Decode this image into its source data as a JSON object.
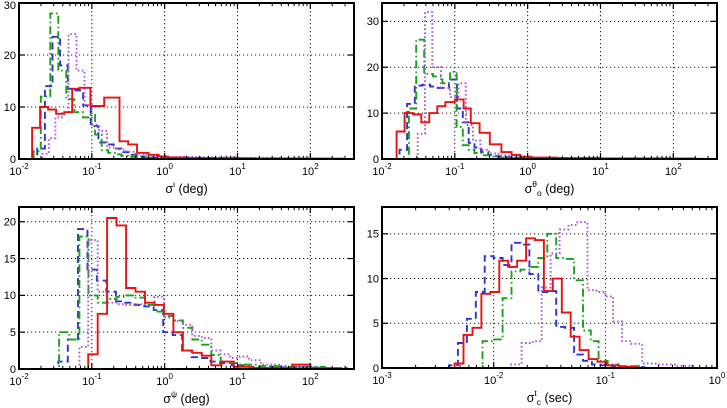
{
  "page": {
    "background": "#ffffff"
  },
  "colors": {
    "red": "#e81212",
    "blue": "#2c35cc",
    "green": "#1aa11a",
    "magenta": "#b050e0",
    "axis": "#000000",
    "grid": "#1a1a1a"
  },
  "chart_data": [
    {
      "type": "bar",
      "subtype": "step-histogram",
      "id": "sigma-iota-deg",
      "title": "",
      "xlabel_text": "σ^ι (deg)",
      "xlabel_parts": [
        {
          "t": "σ",
          "s": "base"
        },
        {
          "t": "ι",
          "s": "sup"
        },
        {
          "t": " (deg)",
          "s": "base"
        }
      ],
      "ylabel": "",
      "xscale": "log",
      "xlim_log10": [
        -2,
        2.6
      ],
      "xticks_log10": [
        -2,
        -1,
        0,
        1,
        2
      ],
      "ylim": [
        0,
        30
      ],
      "yticks": [
        0,
        10,
        20,
        30
      ],
      "grid": true,
      "legend": "none",
      "series": [
        {
          "name": "series-blue-dashed",
          "color": "#2c35cc",
          "style": "dashed",
          "edges_log10": [
            -1.75,
            -1.645,
            -1.54,
            -1.435,
            -1.33,
            -1.225,
            -1.12,
            -1.015,
            -0.91,
            -0.805,
            -0.7,
            -0.595,
            -0.49,
            -0.385,
            -0.28,
            -0.12,
            0.2,
            0.7,
            1.4,
            2.2
          ],
          "counts": [
            2,
            14,
            23.5,
            18,
            13.5,
            13.2,
            10.3,
            6.3,
            3.2,
            2.8,
            2.0,
            1.3,
            0.8,
            0.5,
            0.3,
            0.2,
            0.12,
            0.08,
            0.05
          ]
        },
        {
          "name": "series-green-dashdot",
          "color": "#1aa11a",
          "style": "dashdot",
          "edges_log10": [
            -1.8,
            -1.7,
            -1.57,
            -1.46,
            -1.35,
            -1.24,
            -1.12,
            -1.045,
            -0.955,
            -0.865,
            -0.775,
            -0.685,
            -0.595,
            -0.5,
            -0.38,
            -0.2,
            0.1,
            0.6,
            1.4,
            2.3
          ],
          "counts": [
            1.5,
            12,
            28,
            17,
            11.5,
            9,
            8,
            8.5,
            4.7,
            1.7,
            1.2,
            0.9,
            0.6,
            0.4,
            0.3,
            0.2,
            0.12,
            0.08,
            0.05
          ]
        },
        {
          "name": "series-magenta-dotted",
          "color": "#b050e0",
          "style": "dotted",
          "edges_log10": [
            -1.68,
            -1.59,
            -1.5,
            -1.41,
            -1.32,
            -1.21,
            -1.1,
            -1.0,
            -0.9,
            -0.79,
            -0.66,
            -0.53,
            -0.4,
            -0.27,
            -0.12,
            0.1,
            0.5,
            1.0,
            1.6,
            2.3
          ],
          "counts": [
            1,
            4,
            8,
            9,
            24,
            17,
            10.4,
            6.6,
            5.4,
            2.2,
            1.8,
            1.4,
            1.0,
            0.8,
            0.5,
            0.4,
            0.3,
            0.2,
            0.1
          ]
        },
        {
          "name": "series-red-solid",
          "color": "#e81212",
          "style": "solid",
          "edges_log10": [
            -1.82,
            -1.71,
            -1.6,
            -1.49,
            -1.38,
            -1.27,
            -1.17,
            -1.02,
            -0.83,
            -0.62,
            -0.5,
            -0.38,
            -0.22,
            -0.08,
            0.04,
            0.3,
            0.7,
            1.2,
            2.0,
            2.45
          ],
          "counts": [
            6,
            10,
            9.5,
            8.7,
            9,
            13.5,
            13.7,
            10.2,
            11.8,
            3.4,
            2.8,
            1.2,
            0.8,
            0.5,
            0.3,
            0.2,
            0.15,
            0.1,
            0.08
          ]
        }
      ]
    },
    {
      "type": "bar",
      "subtype": "step-histogram",
      "id": "sigma-theta-o-deg",
      "title": "",
      "xlabel_text": "σ^θ_o (deg)",
      "xlabel_parts": [
        {
          "t": "σ",
          "s": "base"
        },
        {
          "t": "θ",
          "s": "sup"
        },
        {
          "t": "o",
          "s": "sub"
        },
        {
          "t": " (deg)",
          "s": "base"
        }
      ],
      "ylabel": "",
      "xscale": "log",
      "xlim_log10": [
        -2,
        2.6
      ],
      "xticks_log10": [
        -2,
        -1,
        0,
        1,
        2
      ],
      "ylim": [
        0,
        34
      ],
      "yticks": [
        0,
        10,
        20,
        30
      ],
      "grid": true,
      "legend": "none",
      "series": [
        {
          "name": "series-blue-dashed",
          "color": "#2c35cc",
          "style": "dashed",
          "edges_log10": [
            -1.76,
            -1.655,
            -1.55,
            -1.445,
            -1.34,
            -1.235,
            -1.08,
            -0.97,
            -0.89,
            -0.81,
            -0.73,
            -0.64,
            -0.54,
            -0.44,
            -0.32,
            -0.18,
            0.1,
            0.6,
            1.3,
            2.2
          ],
          "counts": [
            2,
            12,
            16,
            16.2,
            15.8,
            15.5,
            17.3,
            11,
            8,
            3.5,
            2.5,
            1.5,
            0.9,
            0.6,
            0.4,
            0.3,
            0.2,
            0.1,
            0.05
          ]
        },
        {
          "name": "series-green-dashdot",
          "color": "#1aa11a",
          "style": "dashdot",
          "edges_log10": [
            -1.63,
            -1.53,
            -1.42,
            -1.3,
            -1.17,
            -1.065,
            -0.975,
            -0.89,
            -0.81,
            -0.73,
            -0.63,
            -0.52,
            -0.4,
            -0.25,
            0.0,
            0.5,
            1.3,
            2.2
          ],
          "counts": [
            11,
            26,
            18.5,
            18,
            16.5,
            19,
            7,
            3,
            2,
            1.3,
            0.8,
            0.5,
            0.3,
            0.2,
            0.1,
            0.08,
            0.05
          ]
        },
        {
          "name": "series-magenta-dotted",
          "color": "#b050e0",
          "style": "dotted",
          "edges_log10": [
            -1.51,
            -1.41,
            -1.31,
            -1.19,
            -1.065,
            -0.95,
            -0.85,
            -0.75,
            -0.65,
            -0.53,
            -0.4,
            -0.26,
            -0.1,
            0.3,
            1.0,
            1.8,
            2.4
          ],
          "counts": [
            5.5,
            32,
            20,
            15.5,
            13.5,
            16.5,
            7.4,
            4,
            2,
            1.2,
            0.8,
            0.5,
            0.3,
            0.2,
            0.15,
            0.1
          ]
        },
        {
          "name": "series-red-solid",
          "color": "#e81212",
          "style": "solid",
          "edges_log10": [
            -1.8,
            -1.69,
            -1.575,
            -1.46,
            -1.35,
            -1.24,
            -1.13,
            -1.0,
            -0.88,
            -0.78,
            -0.66,
            -0.52,
            -0.36,
            -0.22,
            -0.1,
            0.05,
            0.4,
            1.0,
            2.3
          ],
          "counts": [
            6,
            10,
            9.7,
            8,
            10,
            11.5,
            12.4,
            13,
            11,
            7.8,
            5.7,
            3.2,
            1.5,
            0.9,
            0.5,
            0.3,
            0.2,
            0.1
          ]
        }
      ]
    },
    {
      "type": "bar",
      "subtype": "step-histogram",
      "id": "sigma-psi-deg",
      "title": "",
      "xlabel_text": "σ^ψ (deg)",
      "xlabel_parts": [
        {
          "t": "σ",
          "s": "base"
        },
        {
          "t": "ψ",
          "s": "sup"
        },
        {
          "t": " (deg)",
          "s": "base"
        }
      ],
      "ylabel": "",
      "xscale": "log",
      "xlim_log10": [
        -2,
        2.6
      ],
      "xticks_log10": [
        -2,
        -1,
        0,
        1,
        2
      ],
      "ylim": [
        0,
        22
      ],
      "yticks": [
        0,
        5,
        10,
        15,
        20
      ],
      "grid": true,
      "legend": "none",
      "series": [
        {
          "name": "series-blue-dashed",
          "color": "#2c35cc",
          "style": "dashed",
          "edges_log10": [
            -1.46,
            -1.33,
            -1.19,
            -1.06,
            -0.93,
            -0.8,
            -0.67,
            -0.54,
            -0.41,
            -0.28,
            -0.15,
            -0.02,
            0.11,
            0.24,
            0.37,
            0.5,
            0.63,
            0.76,
            0.92,
            1.15,
            1.6,
            2.1,
            2.5
          ],
          "counts": [
            1,
            4,
            19,
            13.5,
            12,
            10.5,
            9.2,
            9,
            8.7,
            8.5,
            8,
            5,
            4.6,
            2.5,
            1.6,
            1.5,
            1.0,
            0.8,
            0.5,
            0.3,
            0.2,
            0.1
          ]
        },
        {
          "name": "series-green-dashdot",
          "color": "#1aa11a",
          "style": "dashdot",
          "edges_log10": [
            -1.45,
            -1.31,
            -1.17,
            -1.045,
            -0.92,
            -0.79,
            -0.66,
            -0.53,
            -0.4,
            -0.27,
            -0.14,
            -0.01,
            0.12,
            0.25,
            0.38,
            0.51,
            0.64,
            0.77,
            0.9,
            1.03,
            1.25,
            1.7,
            2.2,
            2.5
          ],
          "counts": [
            5,
            4,
            18,
            10,
            9,
            9.5,
            9.8,
            10,
            9.7,
            8.7,
            7.8,
            7.2,
            6.6,
            5.6,
            4,
            3.3,
            1.9,
            1.0,
            0.8,
            0.6,
            0.4,
            0.3,
            0.15
          ]
        },
        {
          "name": "series-magenta-dotted",
          "color": "#b050e0",
          "style": "dotted",
          "edges_log10": [
            -1.17,
            -1.05,
            -0.92,
            -0.79,
            -0.66,
            -0.53,
            -0.4,
            -0.27,
            -0.14,
            -0.01,
            0.12,
            0.25,
            0.38,
            0.51,
            0.64,
            0.77,
            0.9,
            1.03,
            1.16,
            1.32,
            1.6,
            2.0,
            2.4
          ],
          "counts": [
            3,
            17.5,
            10.5,
            9,
            8.8,
            8.7,
            8.8,
            9,
            9.8,
            7,
            6.5,
            6,
            4.5,
            4.2,
            2.5,
            2,
            1.5,
            1.7,
            1.2,
            0.6,
            0.3,
            0.15
          ]
        },
        {
          "name": "series-red-solid",
          "color": "#e81212",
          "style": "solid",
          "edges_log10": [
            -1.05,
            -0.92,
            -0.79,
            -0.66,
            -0.53,
            -0.4,
            -0.27,
            -0.14,
            -0.01,
            0.12,
            0.25,
            0.38,
            0.51,
            0.64,
            0.78,
            0.95,
            1.2,
            1.75,
            2.0,
            2.35
          ],
          "counts": [
            2,
            7.5,
            20.5,
            19.5,
            11,
            10.5,
            9,
            8.7,
            7.5,
            5,
            2.5,
            2.2,
            1.8,
            0.5,
            1.0,
            0.3,
            0.15,
            0.6,
            0.1
          ]
        }
      ]
    },
    {
      "type": "bar",
      "subtype": "step-histogram",
      "id": "sigma-tc-sec",
      "title": "",
      "xlabel_text": "σ^t_c (sec)",
      "xlabel_parts": [
        {
          "t": "σ",
          "s": "base"
        },
        {
          "t": "t",
          "s": "sup"
        },
        {
          "t": "c",
          "s": "sub"
        },
        {
          "t": " (sec)",
          "s": "base"
        }
      ],
      "ylabel": "",
      "xscale": "log",
      "xlim_log10": [
        -3,
        0
      ],
      "xticks_log10": [
        -3,
        -2,
        -1,
        0
      ],
      "ylim": [
        0,
        18
      ],
      "yticks": [
        0,
        5,
        10,
        15
      ],
      "grid": true,
      "legend": "none",
      "series": [
        {
          "name": "series-blue-dashed",
          "color": "#2c35cc",
          "style": "dashed",
          "edges_log10": [
            -2.4,
            -2.32,
            -2.24,
            -2.16,
            -2.08,
            -2.0,
            -1.92,
            -1.84,
            -1.76,
            -1.68,
            -1.6,
            -1.52,
            -1.44,
            -1.36,
            -1.28,
            -1.2,
            -1.12,
            -1.04,
            -0.94,
            -0.8,
            -0.65
          ],
          "counts": [
            0.3,
            2.8,
            5.5,
            8.5,
            12.5,
            12.3,
            11.5,
            14,
            13.8,
            10.5,
            8.5,
            8.6,
            4.6,
            4.5,
            1.5,
            0.8,
            0.4,
            0.3,
            0.2,
            0.1
          ]
        },
        {
          "name": "series-green-dashdot",
          "color": "#1aa11a",
          "style": "dashdot",
          "edges_log10": [
            -2.1,
            -2.0,
            -1.92,
            -1.84,
            -1.76,
            -1.68,
            -1.6,
            -1.52,
            -1.44,
            -1.36,
            -1.28,
            -1.2,
            -1.13,
            -1.06,
            -0.98,
            -0.88,
            -0.7
          ],
          "counts": [
            3,
            3.2,
            7.8,
            10.8,
            11,
            11.3,
            12.3,
            15,
            12.3,
            12.2,
            9.8,
            4.2,
            3,
            0.8,
            0.4,
            0.2
          ]
        },
        {
          "name": "series-magenta-dotted",
          "color": "#b050e0",
          "style": "dotted",
          "edges_log10": [
            -1.85,
            -1.75,
            -1.65,
            -1.57,
            -1.49,
            -1.41,
            -1.33,
            -1.25,
            -1.16,
            -1.08,
            -1.0,
            -0.93,
            -0.85,
            -0.77,
            -0.67,
            -0.53,
            -0.37,
            -0.2
          ],
          "counts": [
            0.4,
            2.8,
            3.0,
            9,
            12.8,
            15.5,
            16,
            16.3,
            8.7,
            8.5,
            8,
            5.2,
            3,
            2.7,
            0.5,
            0.4,
            0.25
          ]
        },
        {
          "name": "series-red-solid",
          "color": "#e81212",
          "style": "solid",
          "edges_log10": [
            -2.35,
            -2.27,
            -2.19,
            -2.11,
            -2.03,
            -1.95,
            -1.87,
            -1.79,
            -1.71,
            -1.63,
            -1.55,
            -1.47,
            -1.39,
            -1.31,
            -1.23,
            -1.15,
            -1.07,
            -0.99,
            -0.88,
            -0.72
          ],
          "counts": [
            0.5,
            3.7,
            4.5,
            8.3,
            8.5,
            12,
            11.3,
            12,
            14.5,
            14.3,
            8.6,
            10,
            6.2,
            3.5,
            2,
            1,
            0.7,
            0.3,
            0.15
          ]
        }
      ]
    }
  ]
}
